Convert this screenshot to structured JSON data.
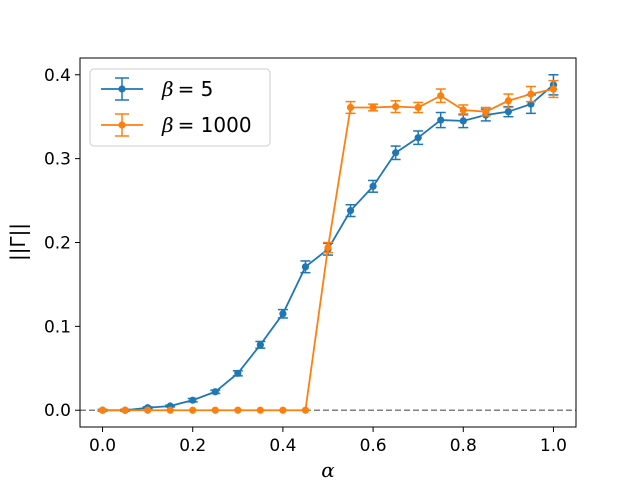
{
  "chart_data": {
    "type": "line",
    "xlabel": "α",
    "ylabel": "||Γ||",
    "xlim": [
      -0.05,
      1.05
    ],
    "ylim": [
      -0.02,
      0.42
    ],
    "xticks": [
      0.0,
      0.2,
      0.4,
      0.6,
      0.8,
      1.0
    ],
    "xtick_labels": [
      "0.0",
      "0.2",
      "0.4",
      "0.6",
      "0.8",
      "1.0"
    ],
    "yticks": [
      0.0,
      0.1,
      0.2,
      0.3,
      0.4
    ],
    "ytick_labels": [
      "0.0",
      "0.1",
      "0.2",
      "0.3",
      "0.4"
    ],
    "grid": false,
    "legend": "top-left",
    "reference_line": {
      "y": 0.0,
      "style": "dashed",
      "color": "#808080"
    },
    "x": [
      0.0,
      0.05,
      0.1,
      0.15,
      0.2,
      0.25,
      0.3,
      0.35,
      0.4,
      0.45,
      0.5,
      0.55,
      0.6,
      0.65,
      0.7,
      0.75,
      0.8,
      0.85,
      0.9,
      0.95,
      1.0
    ],
    "series": [
      {
        "name_prefix": "β",
        "name_value": "= 5",
        "color": "#1f77b4",
        "values": [
          0.0,
          0.0,
          0.003,
          0.005,
          0.012,
          0.022,
          0.044,
          0.078,
          0.115,
          0.171,
          0.192,
          0.238,
          0.267,
          0.307,
          0.325,
          0.346,
          0.345,
          0.352,
          0.356,
          0.365,
          0.388
        ],
        "errors": [
          0.001,
          0.001,
          0.001,
          0.001,
          0.002,
          0.002,
          0.003,
          0.004,
          0.005,
          0.007,
          0.007,
          0.007,
          0.007,
          0.008,
          0.008,
          0.009,
          0.008,
          0.007,
          0.006,
          0.011,
          0.012
        ]
      },
      {
        "name_prefix": "β",
        "name_value": "= 1000",
        "color": "#ff7f0e",
        "values": [
          0.0,
          0.0,
          0.0,
          0.0,
          0.0,
          0.0,
          0.0,
          0.0,
          0.0,
          0.0,
          0.194,
          0.361,
          0.361,
          0.362,
          0.361,
          0.375,
          0.358,
          0.356,
          0.369,
          0.377,
          0.383
        ],
        "errors": [
          0.0,
          0.0,
          0.0,
          0.0,
          0.0,
          0.0,
          0.0,
          0.0,
          0.0,
          0.0,
          0.006,
          0.007,
          0.004,
          0.007,
          0.006,
          0.008,
          0.006,
          0.005,
          0.008,
          0.009,
          0.01
        ]
      }
    ]
  }
}
